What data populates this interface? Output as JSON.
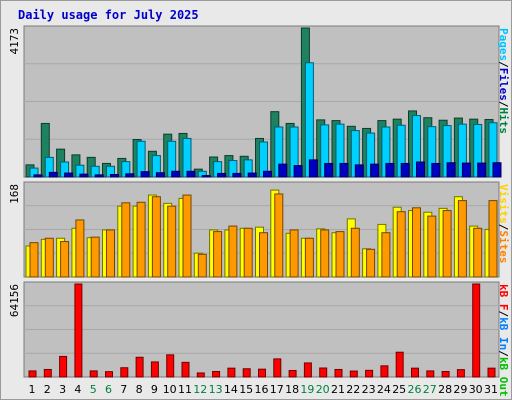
{
  "chart_data": {
    "type": "bar",
    "title": "Daily usage for July 2025",
    "categories": [
      "1",
      "2",
      "3",
      "4",
      "5",
      "6",
      "7",
      "8",
      "9",
      "10",
      "11",
      "12",
      "13",
      "14",
      "15",
      "16",
      "17",
      "18",
      "19",
      "20",
      "21",
      "22",
      "23",
      "24",
      "25",
      "26",
      "27",
      "28",
      "29",
      "30",
      "31"
    ],
    "weekend_days": [
      "5",
      "6",
      "12",
      "13",
      "19",
      "20",
      "26",
      "27"
    ],
    "panels": [
      {
        "id": "hits-files-pages",
        "ymax_label": "4173",
        "ymax": 4173,
        "legend": [
          {
            "label": "Pages",
            "color": "#00c0ff"
          },
          {
            "label": "/",
            "color": "#000000"
          },
          {
            "label": "Files",
            "color": "#0000c0"
          },
          {
            "label": "/",
            "color": "#000000"
          },
          {
            "label": "Hits",
            "color": "#008040"
          }
        ],
        "series": [
          {
            "name": "Hits",
            "color": "#1e8260",
            "values": [
              340,
              1500,
              780,
              620,
              550,
              380,
              520,
              1050,
              720,
              1200,
              1220,
              220,
              560,
              600,
              580,
              1080,
              1830,
              1500,
              4173,
              1600,
              1580,
              1420,
              1360,
              1580,
              1620,
              1850,
              1660,
              1590,
              1650,
              1620,
              1610
            ]
          },
          {
            "name": "Files",
            "color": "#00d0ff",
            "values": [
              250,
              550,
              420,
              330,
              300,
              300,
              430,
              1000,
              600,
              1000,
              1080,
              160,
              430,
              460,
              480,
              980,
              1400,
              1400,
              3200,
              1460,
              1480,
              1300,
              1230,
              1400,
              1450,
              1720,
              1410,
              1440,
              1480,
              1470,
              1520
            ]
          },
          {
            "name": "Pages",
            "color": "#0000c0",
            "values": [
              60,
              130,
              110,
              80,
              60,
              70,
              90,
              150,
              120,
              160,
              160,
              40,
              100,
              100,
              110,
              160,
              360,
              320,
              480,
              380,
              380,
              340,
              360,
              380,
              380,
              420,
              380,
              400,
              390,
              390,
              400
            ]
          }
        ]
      },
      {
        "id": "visits-sites",
        "ymax_label": "168",
        "ymax": 168,
        "legend": [
          {
            "label": "Visits",
            "color": "#ffd000"
          },
          {
            "label": "/",
            "color": "#000000"
          },
          {
            "label": "Sites",
            "color": "#ff8000"
          }
        ],
        "series": [
          {
            "name": "Visits",
            "color": "#ffff00",
            "values": [
              56,
              68,
              70,
              88,
              71,
              85,
              128,
              128,
              148,
              133,
              142,
              43,
              85,
              85,
              88,
              90,
              157,
              79,
              70,
              87,
              80,
              105,
              51,
              95,
              126,
              120,
              117,
              124,
              145,
              92,
              86
            ]
          },
          {
            "name": "Sites",
            "color": "#ff9900",
            "values": [
              62,
              70,
              64,
              103,
              72,
              85,
              134,
              135,
              145,
              128,
              148,
              41,
              82,
              92,
              88,
              80,
              150,
              85,
              70,
              85,
              82,
              88,
              50,
              80,
              118,
              125,
              110,
              120,
              138,
              88,
              138
            ]
          }
        ]
      },
      {
        "id": "kbytes",
        "ymax_label": "64156",
        "ymax": 64156,
        "legend": [
          {
            "label": "kB F",
            "color": "#ff0000"
          },
          {
            "label": "/",
            "color": "#000000"
          },
          {
            "label": "kB In",
            "color": "#0080ff"
          },
          {
            "label": "/",
            "color": "#000000"
          },
          {
            "label": "kB Out",
            "color": "#00c000"
          }
        ],
        "series": [
          {
            "name": "kB F",
            "color": "#ff0000",
            "values": [
              4200,
              5200,
              14200,
              64156,
              4200,
              3700,
              6400,
              13600,
              10400,
              15300,
              10100,
              2800,
              3800,
              6100,
              5700,
              5400,
              12500,
              4500,
              9700,
              6200,
              5200,
              4100,
              4600,
              7700,
              17100,
              6100,
              4200,
              3800,
              5100,
              64156,
              6100
            ]
          }
        ]
      }
    ]
  }
}
